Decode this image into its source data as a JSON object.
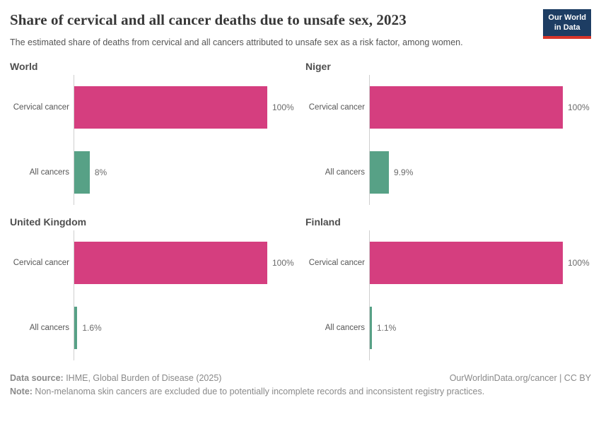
{
  "header": {
    "title": "Share of cervical and all cancer deaths due to unsafe sex, 2023",
    "subtitle": "The estimated share of deaths from cervical and all cancers attributed to unsafe sex as a risk factor, among women.",
    "logo_line1": "Our World",
    "logo_line2": "in Data"
  },
  "colors": {
    "cervical_bar": "#d53e7f",
    "all_cancers_bar": "#57a186",
    "logo_navy": "#1d3d63",
    "logo_red": "#d8352a",
    "axis_line": "#cfcfcf"
  },
  "chart_data": {
    "type": "bar",
    "orientation": "horizontal",
    "unit": "%",
    "xlim": [
      0,
      100
    ],
    "grid": false,
    "legend": "none",
    "categories": [
      "Cervical cancer",
      "All cancers"
    ],
    "panels": [
      {
        "title": "World",
        "bars": [
          {
            "label": "Cervical cancer",
            "value": 100,
            "display": "100%",
            "color": "#d53e7f"
          },
          {
            "label": "All cancers",
            "value": 8,
            "display": "8%",
            "color": "#57a186"
          }
        ]
      },
      {
        "title": "Niger",
        "bars": [
          {
            "label": "Cervical cancer",
            "value": 100,
            "display": "100%",
            "color": "#d53e7f"
          },
          {
            "label": "All cancers",
            "value": 9.9,
            "display": "9.9%",
            "color": "#57a186"
          }
        ]
      },
      {
        "title": "United Kingdom",
        "bars": [
          {
            "label": "Cervical cancer",
            "value": 100,
            "display": "100%",
            "color": "#d53e7f"
          },
          {
            "label": "All cancers",
            "value": 1.6,
            "display": "1.6%",
            "color": "#57a186"
          }
        ]
      },
      {
        "title": "Finland",
        "bars": [
          {
            "label": "Cervical cancer",
            "value": 100,
            "display": "100%",
            "color": "#d53e7f"
          },
          {
            "label": "All cancers",
            "value": 1.1,
            "display": "1.1%",
            "color": "#57a186"
          }
        ]
      }
    ]
  },
  "footer": {
    "source_label": "Data source:",
    "source_text": " IHME, Global Burden of Disease (2025)",
    "credit_text": "OurWorldinData.org/cancer | CC BY",
    "note_label": "Note:",
    "note_text": " Non-melanoma skin cancers are excluded due to potentially incomplete records and inconsistent registry practices."
  }
}
